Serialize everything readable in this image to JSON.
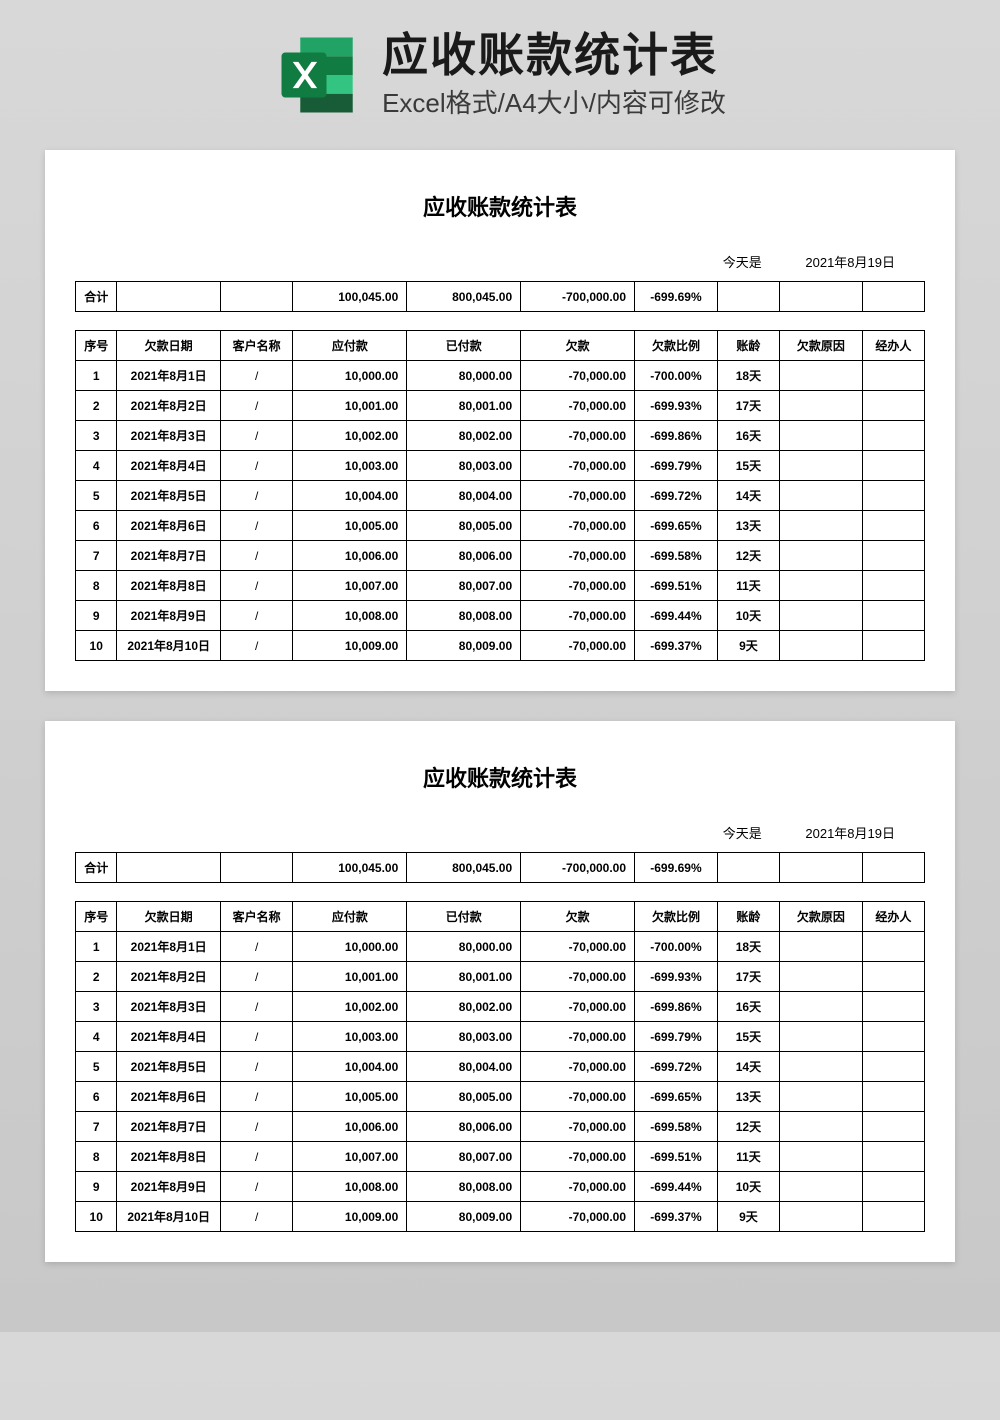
{
  "header": {
    "title": "应收账款统计表",
    "subtitle": "Excel格式/A4大小/内容可修改"
  },
  "sheet": {
    "title": "应收账款统计表",
    "today_label": "今天是",
    "today_value": "2021年8月19日",
    "summary": {
      "label": "合计",
      "payable": "100,045.00",
      "paid": "800,045.00",
      "owed": "-700,000.00",
      "ratio": "-699.69%"
    },
    "columns": [
      "序号",
      "欠款日期",
      "客户名称",
      "应付款",
      "已付款",
      "欠款",
      "欠款比例",
      "账龄",
      "欠款原因",
      "经办人"
    ],
    "rows": [
      {
        "seq": "1",
        "date": "2021年8月1日",
        "cust": "/",
        "payable": "10,000.00",
        "paid": "80,000.00",
        "owed": "-70,000.00",
        "ratio": "-700.00%",
        "age": "18天",
        "reason": "",
        "handler": ""
      },
      {
        "seq": "2",
        "date": "2021年8月2日",
        "cust": "/",
        "payable": "10,001.00",
        "paid": "80,001.00",
        "owed": "-70,000.00",
        "ratio": "-699.93%",
        "age": "17天",
        "reason": "",
        "handler": ""
      },
      {
        "seq": "3",
        "date": "2021年8月3日",
        "cust": "/",
        "payable": "10,002.00",
        "paid": "80,002.00",
        "owed": "-70,000.00",
        "ratio": "-699.86%",
        "age": "16天",
        "reason": "",
        "handler": ""
      },
      {
        "seq": "4",
        "date": "2021年8月4日",
        "cust": "/",
        "payable": "10,003.00",
        "paid": "80,003.00",
        "owed": "-70,000.00",
        "ratio": "-699.79%",
        "age": "15天",
        "reason": "",
        "handler": ""
      },
      {
        "seq": "5",
        "date": "2021年8月5日",
        "cust": "/",
        "payable": "10,004.00",
        "paid": "80,004.00",
        "owed": "-70,000.00",
        "ratio": "-699.72%",
        "age": "14天",
        "reason": "",
        "handler": ""
      },
      {
        "seq": "6",
        "date": "2021年8月6日",
        "cust": "/",
        "payable": "10,005.00",
        "paid": "80,005.00",
        "owed": "-70,000.00",
        "ratio": "-699.65%",
        "age": "13天",
        "reason": "",
        "handler": ""
      },
      {
        "seq": "7",
        "date": "2021年8月7日",
        "cust": "/",
        "payable": "10,006.00",
        "paid": "80,006.00",
        "owed": "-70,000.00",
        "ratio": "-699.58%",
        "age": "12天",
        "reason": "",
        "handler": ""
      },
      {
        "seq": "8",
        "date": "2021年8月8日",
        "cust": "/",
        "payable": "10,007.00",
        "paid": "80,007.00",
        "owed": "-70,000.00",
        "ratio": "-699.51%",
        "age": "11天",
        "reason": "",
        "handler": ""
      },
      {
        "seq": "9",
        "date": "2021年8月9日",
        "cust": "/",
        "payable": "10,008.00",
        "paid": "80,008.00",
        "owed": "-70,000.00",
        "ratio": "-699.44%",
        "age": "10天",
        "reason": "",
        "handler": ""
      },
      {
        "seq": "10",
        "date": "2021年8月10日",
        "cust": "/",
        "payable": "10,009.00",
        "paid": "80,009.00",
        "owed": "-70,000.00",
        "ratio": "-699.37%",
        "age": "9天",
        "reason": "",
        "handler": ""
      }
    ]
  },
  "styling": {
    "page_bg": "#ffffff",
    "body_bg_gradient": [
      "#d8d8d8",
      "#c8c8c8"
    ],
    "border_color": "#000000",
    "title_fontsize": 22,
    "header_title_fontsize": 46,
    "header_sub_fontsize": 26,
    "table_fontsize": 12,
    "excel_icon_colors": {
      "dark": "#185c37",
      "mid": "#21a366",
      "light": "#33c481",
      "lightest": "#107c41",
      "white": "#ffffff"
    }
  }
}
